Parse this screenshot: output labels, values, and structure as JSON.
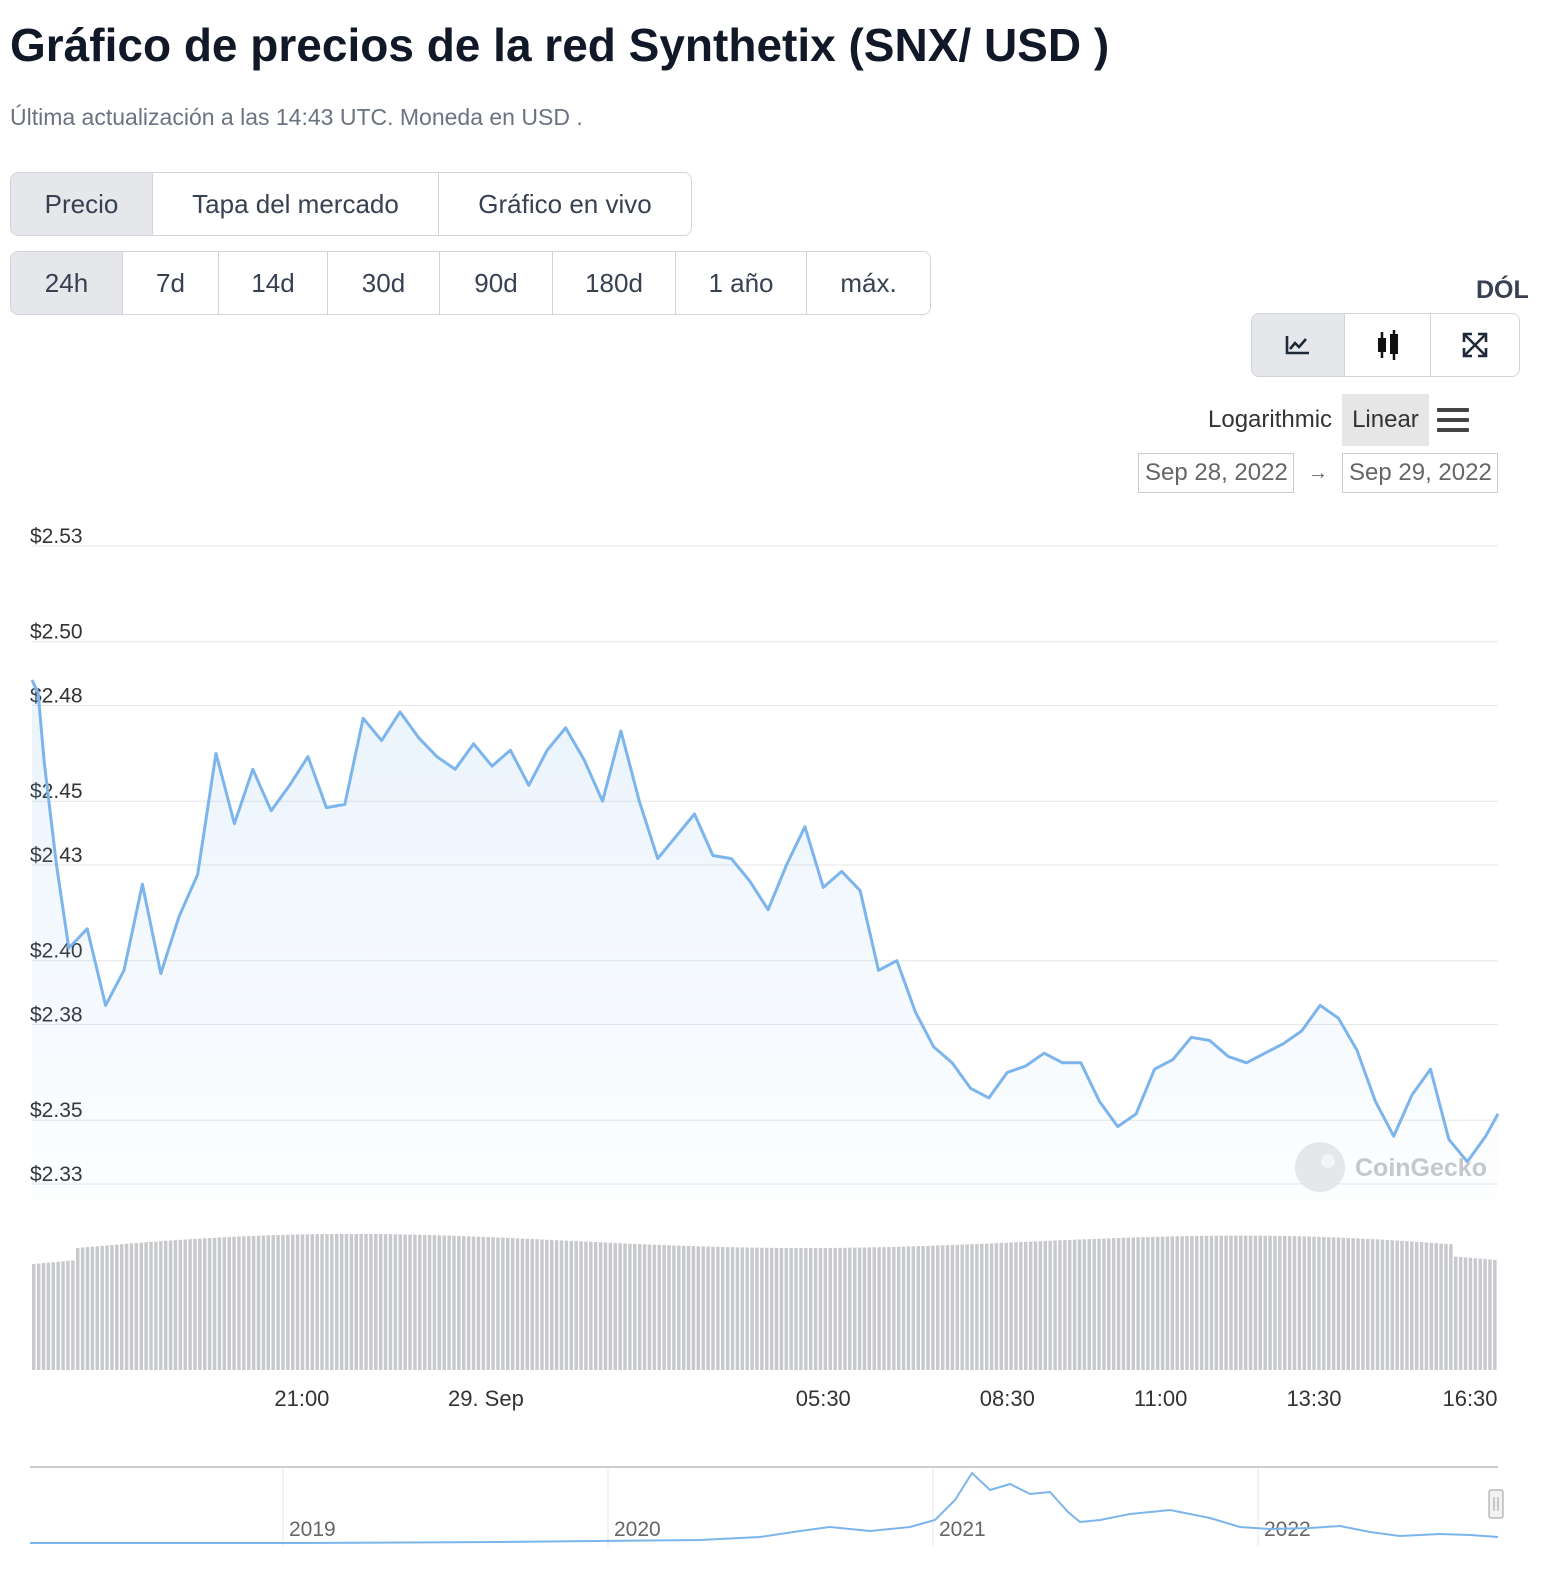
{
  "header": {
    "title": "Gráfico de precios de la red Synthetix (SNX/ USD )",
    "subtitle": "Última actualización a las 14:43 UTC. Moneda en USD ."
  },
  "metric_tabs": [
    {
      "label": "Precio",
      "active": true
    },
    {
      "label": "Tapa del mercado",
      "active": false
    },
    {
      "label": "Gráfico en vivo",
      "active": false
    }
  ],
  "range_tabs": [
    {
      "label": "24h",
      "active": true
    },
    {
      "label": "7d",
      "active": false
    },
    {
      "label": "14d",
      "active": false
    },
    {
      "label": "30d",
      "active": false
    },
    {
      "label": "90d",
      "active": false
    },
    {
      "label": "180d",
      "active": false
    },
    {
      "label": "1 año",
      "active": false
    },
    {
      "label": "máx.",
      "active": false
    }
  ],
  "currency_label": "DÓL",
  "chart_type_buttons": [
    {
      "icon": "line-chart-icon",
      "active": true
    },
    {
      "icon": "candlestick-icon",
      "active": false
    },
    {
      "icon": "fullscreen-icon",
      "active": false
    }
  ],
  "scale": {
    "logarithmic_label": "Logarithmic",
    "linear_label": "Linear",
    "active": "linear"
  },
  "date_range": {
    "from": "Sep 28, 2022",
    "to": "Sep 29, 2022",
    "arrow": "→"
  },
  "watermark": "CoinGecko",
  "colors": {
    "line": "#7cb5ec",
    "volume": "#c7c9cc",
    "grid": "#e6e6e6",
    "navigator_line": "#7cb5ec"
  },
  "chart_data": {
    "type": "line",
    "y_axis": {
      "ticks": [
        2.53,
        2.5,
        2.48,
        2.45,
        2.43,
        2.4,
        2.38,
        2.35,
        2.33
      ],
      "tick_labels": [
        "$2.53",
        "$2.50",
        "$2.48",
        "$2.45",
        "$2.43",
        "$2.40",
        "$2.38",
        "$2.35",
        "$2.33"
      ],
      "min": 2.325,
      "max": 2.53
    },
    "x_axis": {
      "tick_labels": [
        "21:00",
        "29. Sep",
        "05:30",
        "08:30",
        "11:00",
        "13:30",
        "16:30"
      ],
      "tick_hours": [
        21.0,
        24.0,
        29.5,
        32.5,
        35.0,
        37.5,
        40.5
      ],
      "min_hour": 16.6,
      "max_hour": 40.5
    },
    "series": [
      {
        "x_hour": [
          16.6,
          16.7,
          16.8,
          17.0,
          17.2,
          17.5,
          17.8,
          18.1,
          18.4,
          18.7,
          19.0,
          19.3,
          19.6,
          19.9,
          20.2,
          20.5,
          20.8,
          21.1,
          21.4,
          21.7,
          22.0,
          22.3,
          22.6,
          22.9,
          23.2,
          23.5,
          23.8,
          24.1,
          24.4,
          24.7,
          25.0,
          25.3,
          25.6,
          25.9,
          26.2,
          26.5,
          26.8,
          27.1,
          27.4,
          27.7,
          28.0,
          28.3,
          28.6,
          28.9,
          29.2,
          29.5,
          29.8,
          30.1,
          30.4,
          30.7,
          31.0,
          31.3,
          31.6,
          31.9,
          32.2,
          32.5,
          32.8,
          33.1,
          33.4,
          33.7,
          34.0,
          34.3,
          34.6,
          34.9,
          35.2,
          35.5,
          35.8,
          36.1,
          36.4,
          36.7,
          37.0,
          37.3,
          37.6,
          37.9,
          38.2,
          38.5,
          38.8,
          39.1,
          39.4,
          39.7,
          40.0,
          40.3,
          40.5
        ],
        "values": [
          2.488,
          2.484,
          2.462,
          2.43,
          2.404,
          2.41,
          2.386,
          2.397,
          2.424,
          2.396,
          2.414,
          2.427,
          2.465,
          2.443,
          2.46,
          2.447,
          2.455,
          2.464,
          2.448,
          2.449,
          2.476,
          2.469,
          2.478,
          2.47,
          2.464,
          2.46,
          2.468,
          2.461,
          2.466,
          2.455,
          2.466,
          2.473,
          2.463,
          2.45,
          2.472,
          2.45,
          2.432,
          2.439,
          2.446,
          2.433,
          2.432,
          2.425,
          2.416,
          2.43,
          2.442,
          2.423,
          2.428,
          2.422,
          2.397,
          2.4,
          2.384,
          2.373,
          2.368,
          2.36,
          2.357,
          2.365,
          2.367,
          2.371,
          2.368,
          2.368,
          2.356,
          2.348,
          2.352,
          2.366,
          2.369,
          2.376,
          2.375,
          2.37,
          2.368,
          2.371,
          2.374,
          2.378,
          2.386,
          2.382,
          2.372,
          2.356,
          2.345,
          2.358,
          2.366,
          2.344,
          2.337,
          2.345,
          2.352
        ]
      }
    ],
    "volume": {
      "bars": 300
    },
    "navigator": {
      "tick_labels": [
        "2019",
        "2020",
        "2021",
        "2022"
      ]
    }
  }
}
